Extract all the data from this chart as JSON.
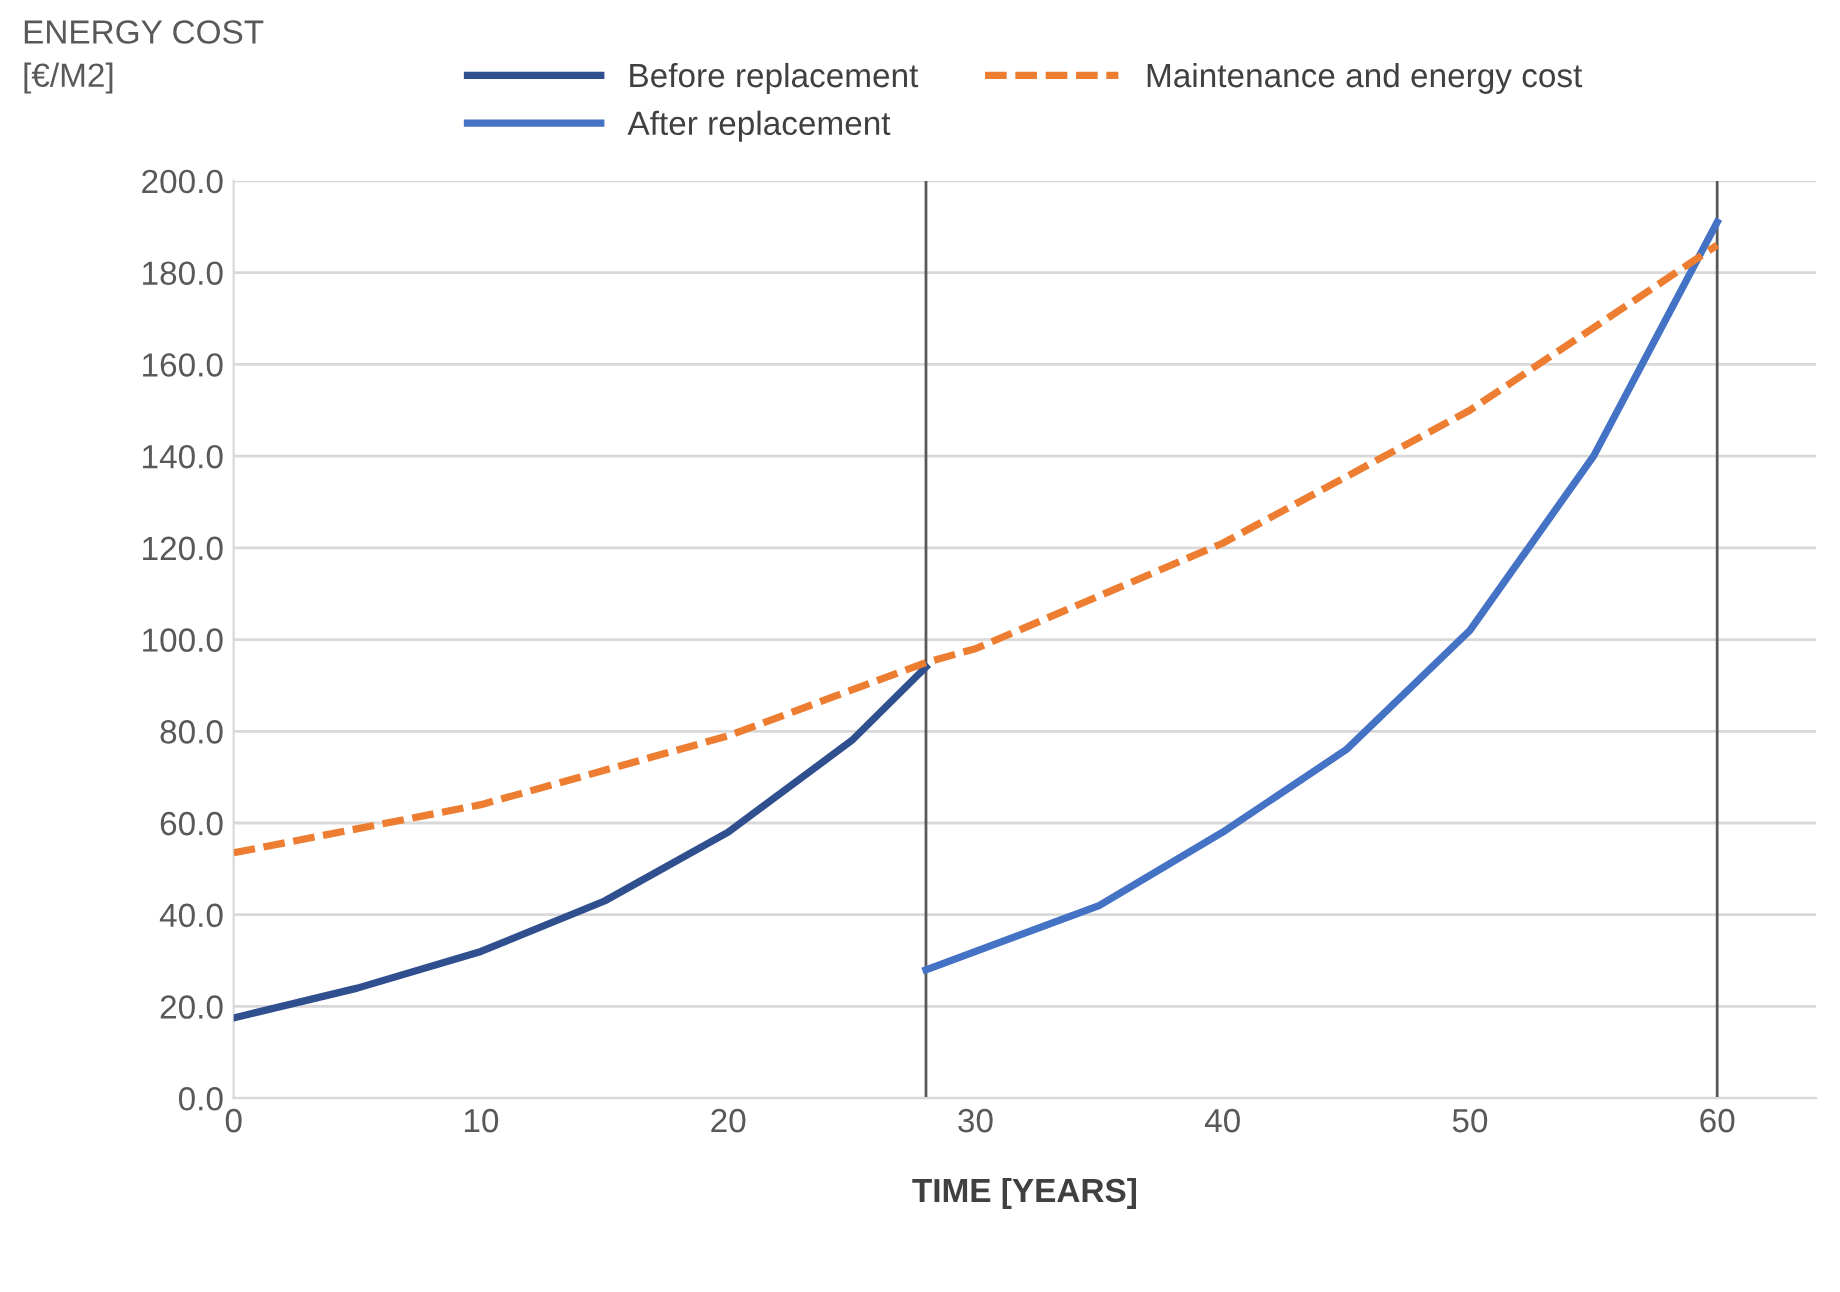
{
  "chart_data": {
    "type": "line",
    "xlabel": "TIME [YEARS]",
    "ylabel": "ENERGY COST\n[€/M2]",
    "xlim": [
      0,
      64
    ],
    "xticks": [
      0,
      10,
      20,
      30,
      40,
      50,
      60
    ],
    "ylim": [
      0,
      200
    ],
    "yticks": [
      {
        "value": 0,
        "label": "0.0"
      },
      {
        "value": 20,
        "label": "20.0"
      },
      {
        "value": 40,
        "label": "40.0"
      },
      {
        "value": 60,
        "label": "60.0"
      },
      {
        "value": 80,
        "label": "80.0"
      },
      {
        "value": 100,
        "label": "100.0"
      },
      {
        "value": 120,
        "label": "120.0"
      },
      {
        "value": 140,
        "label": "140.0"
      },
      {
        "value": 160,
        "label": "160.0"
      },
      {
        "value": 180,
        "label": "180.0"
      },
      {
        "value": 200,
        "label": "200.0"
      }
    ],
    "grid": "y",
    "legend": "top",
    "line_style": "solid",
    "marker": "none",
    "ref_lines": [
      {
        "axis": "x",
        "value": 28,
        "color": "#595959"
      },
      {
        "axis": "x",
        "value": 60,
        "color": "#595959"
      }
    ],
    "series": [
      {
        "name": "Before replacement",
        "color": "#2f4f8f",
        "x": [
          0,
          5,
          10,
          15,
          20,
          25,
          28
        ],
        "values": [
          17.5,
          24,
          32,
          43,
          58,
          78,
          94
        ]
      },
      {
        "name": "After replacement",
        "color": "#4472c4",
        "x": [
          28,
          35,
          40,
          45,
          50,
          55,
          60
        ],
        "values": [
          28,
          42,
          58,
          76,
          102,
          140,
          191
        ]
      },
      {
        "name": "Maintenance and energy cost",
        "color": "#ed7d31",
        "line_style": "dashed",
        "x": [
          0,
          10,
          20,
          28,
          30,
          40,
          50,
          60
        ],
        "values": [
          53.5,
          64,
          79,
          95,
          98,
          121,
          150,
          186
        ]
      }
    ]
  }
}
